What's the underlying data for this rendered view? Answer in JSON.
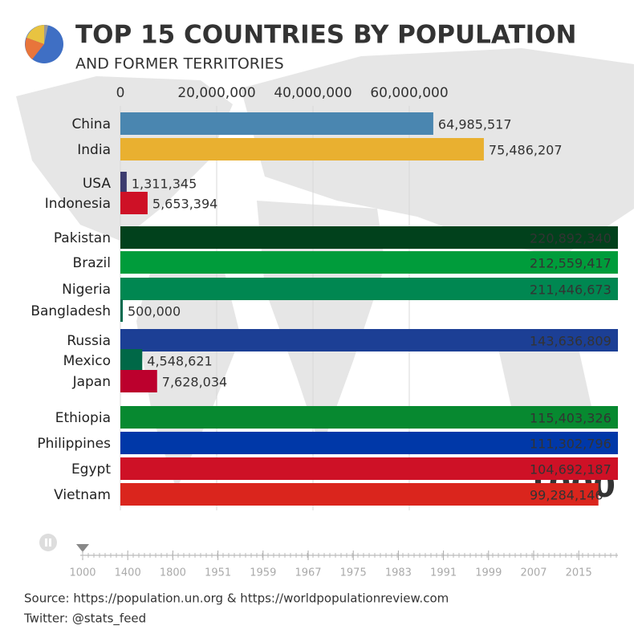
{
  "chart_data": {
    "type": "bar",
    "orientation": "horizontal",
    "title": "TOP 15 COUNTRIES BY POPULATION",
    "subtitle": "AND FORMER TERRITORIES",
    "categories": [
      "China",
      "India",
      "USA",
      "Indonesia",
      "Pakistan",
      "Brazil",
      "Nigeria",
      "Bangladesh",
      "Russia",
      "Mexico",
      "Japan",
      "Ethiopia",
      "Philippines",
      "Egypt",
      "Vietnam"
    ],
    "values": [
      64985517,
      75486207,
      1311345,
      5653394,
      220892340,
      212559417,
      211446673,
      500000,
      143636809,
      4548621,
      7628034,
      115403326,
      111302796,
      104692187,
      99284146
    ],
    "value_labels": [
      "64,985,517",
      "75,486,207",
      "1,311,345",
      "5,653,394",
      "220,892,340",
      "212,559,417",
      "211,446,673",
      "500,000",
      "143,636,809",
      "4,548,621",
      "7,628,034",
      "115,403,326",
      "111,302,796",
      "104,692,187",
      "99,284,146"
    ],
    "colors": [
      "#4a86b0",
      "#e9b030",
      "#3c3b6e",
      "#ce1126",
      "#01411c",
      "#009c3b",
      "#008751",
      "#006a4e",
      "#1c3f95",
      "#006847",
      "#bc002d",
      "#078930",
      "#0038a8",
      "#ce1126",
      "#da251d"
    ],
    "xlim": [
      0,
      100000000
    ],
    "xticks": [
      0,
      {
        "value": 20000000,
        "label": "20,000,000"
      },
      {
        "value": 40000000,
        "label": "40,000,000"
      },
      {
        "value": 60000000,
        "label": "60,000,000"
      }
    ],
    "grid": true,
    "year": 1000,
    "timeline": [
      1000,
      1400,
      1800,
      1951,
      1959,
      1967,
      1975,
      1983,
      1991,
      1999,
      2007,
      2015
    ],
    "source": "Source: https://population.un.org & https://worldpopulationreview.com",
    "credit": "Twitter: @stats_feed"
  }
}
